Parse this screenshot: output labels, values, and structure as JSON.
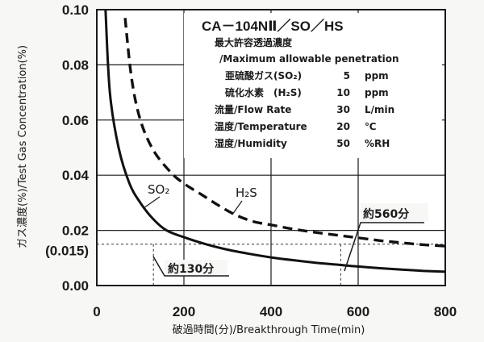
{
  "chart_data": {
    "type": "line",
    "title": "CA－104NⅡ／SO／HS",
    "xlabel": "破過時間(分)/Breakthrough Time(min)",
    "ylabel": "ガス濃度(%)/Test Gas Concentration(%)",
    "xlim": [
      0,
      800
    ],
    "ylim": [
      0,
      0.1
    ],
    "x_ticks": [
      "0",
      "200",
      "400",
      "600",
      "800"
    ],
    "y_ticks": [
      {
        "value": 0.0,
        "label": "0.00"
      },
      {
        "value": 0.02,
        "label": "0.02"
      },
      {
        "value": 0.04,
        "label": "0.04"
      },
      {
        "value": 0.06,
        "label": "0.06"
      },
      {
        "value": 0.08,
        "label": "0.08"
      },
      {
        "value": 0.1,
        "label": "0.10"
      }
    ],
    "y_extra_label": {
      "value": 0.015,
      "label": "(0.015)"
    },
    "grid": true,
    "series": [
      {
        "name": "SO₂",
        "style": "solid",
        "points": [
          [
            20,
            0.1
          ],
          [
            30,
            0.07
          ],
          [
            50,
            0.05
          ],
          [
            75,
            0.037
          ],
          [
            100,
            0.03
          ],
          [
            130,
            0.024
          ],
          [
            160,
            0.02
          ],
          [
            200,
            0.0175
          ],
          [
            250,
            0.015
          ],
          [
            300,
            0.013
          ],
          [
            350,
            0.0115
          ],
          [
            400,
            0.0102
          ],
          [
            450,
            0.0092
          ],
          [
            500,
            0.0083
          ],
          [
            550,
            0.0076
          ],
          [
            600,
            0.0069
          ],
          [
            650,
            0.0063
          ],
          [
            700,
            0.0058
          ],
          [
            750,
            0.0053
          ],
          [
            800,
            0.005
          ]
        ]
      },
      {
        "name": "H₂S",
        "style": "dashed",
        "points": [
          [
            65,
            0.097
          ],
          [
            80,
            0.075
          ],
          [
            100,
            0.06
          ],
          [
            130,
            0.049
          ],
          [
            170,
            0.041
          ],
          [
            200,
            0.037
          ],
          [
            240,
            0.033
          ],
          [
            280,
            0.029
          ],
          [
            320,
            0.0255
          ],
          [
            360,
            0.0232
          ],
          [
            400,
            0.022
          ],
          [
            450,
            0.0205
          ],
          [
            500,
            0.0193
          ],
          [
            550,
            0.0183
          ],
          [
            600,
            0.0173
          ],
          [
            650,
            0.0163
          ],
          [
            700,
            0.0155
          ],
          [
            750,
            0.0148
          ],
          [
            800,
            0.0143
          ]
        ]
      }
    ],
    "annotations": [
      {
        "text": "約130分",
        "x": 130,
        "y": 0.015
      },
      {
        "text": "約560分",
        "x": 560,
        "y": 0.015
      }
    ],
    "info_box": {
      "heading_jp": "最大許容透過濃度",
      "heading_en": "/Maximum allowable penetration",
      "rows": [
        {
          "label": "亜硫酸ガス(SO₂)",
          "value": "5",
          "unit": "ppm"
        },
        {
          "label": "硫化水素　(H₂S)",
          "value": "10",
          "unit": "ppm"
        },
        {
          "label": "流量/Flow Rate",
          "value": "30",
          "unit": "L/min"
        },
        {
          "label": "温度/Temperature",
          "value": "20",
          "unit": "℃"
        },
        {
          "label": "湿度/Humidity",
          "value": "50",
          "unit": "%RH"
        }
      ]
    }
  }
}
